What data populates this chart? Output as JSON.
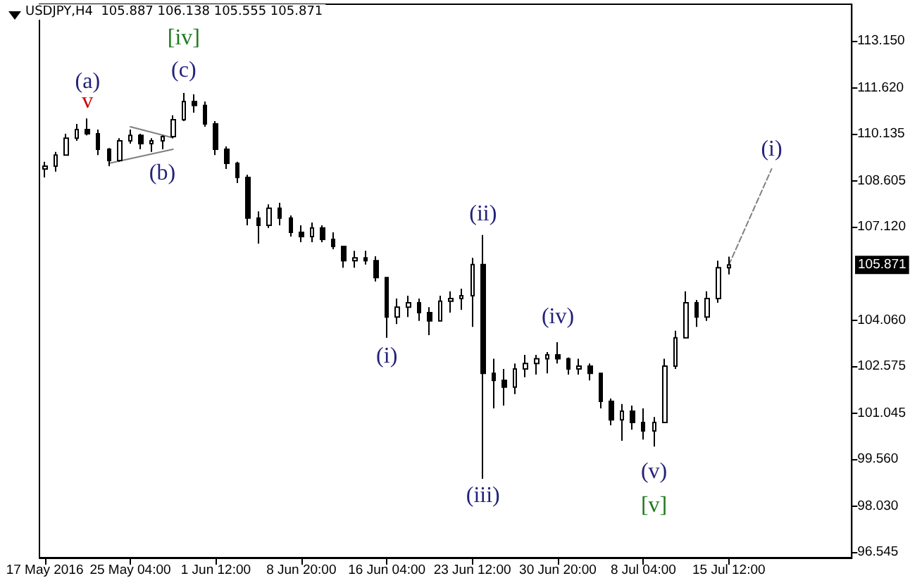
{
  "chart_data": {
    "type": "candlestick",
    "title": "USDJPY,H4  105.887 106.138 105.555 105.871",
    "color": "#000000",
    "categories": [
      "17 May 2016",
      null,
      null,
      null,
      null,
      null,
      null,
      null,
      "25 May 04:00",
      null,
      null,
      null,
      null,
      null,
      null,
      null,
      "1 Jun 12:00",
      null,
      null,
      null,
      null,
      null,
      null,
      null,
      "8 Jun 20:00",
      null,
      null,
      null,
      null,
      null,
      null,
      null,
      "16 Jun 04:00",
      null,
      null,
      null,
      null,
      null,
      null,
      null,
      "23 Jun 12:00",
      null,
      null,
      null,
      null,
      null,
      null,
      null,
      "30 Jun 20:00",
      null,
      null,
      null,
      null,
      null,
      null,
      null,
      "8 Jul 04:00",
      null,
      null,
      null,
      null,
      null,
      null,
      null,
      "15 Jul 12:00",
      null,
      null,
      null,
      null,
      null,
      null,
      null,
      null,
      null,
      null,
      null
    ],
    "ohlc": [
      [
        108.99,
        109.22,
        108.71,
        109.08
      ],
      [
        109.08,
        109.54,
        108.9,
        109.44
      ],
      [
        109.44,
        110.13,
        109.44,
        109.99
      ],
      [
        109.99,
        110.45,
        109.9,
        110.27
      ],
      [
        110.27,
        110.63,
        110.08,
        110.13
      ],
      [
        110.13,
        110.27,
        109.44,
        109.63
      ],
      [
        109.63,
        109.67,
        109.08,
        109.26
      ],
      [
        109.26,
        109.99,
        109.22,
        109.9
      ],
      [
        109.9,
        110.27,
        109.81,
        110.08
      ],
      [
        110.08,
        110.13,
        109.63,
        109.81
      ],
      [
        109.81,
        109.99,
        109.54,
        109.9
      ],
      [
        109.9,
        110.08,
        109.63,
        110.04
      ],
      [
        110.04,
        110.73,
        109.99,
        110.59
      ],
      [
        110.59,
        111.46,
        110.54,
        111.18
      ],
      [
        111.18,
        111.41,
        110.82,
        111.05
      ],
      [
        111.05,
        111.18,
        110.36,
        110.45
      ],
      [
        110.45,
        110.54,
        109.44,
        109.63
      ],
      [
        109.63,
        109.72,
        108.99,
        109.17
      ],
      [
        109.17,
        109.22,
        108.53,
        108.71
      ],
      [
        108.71,
        108.8,
        107.16,
        107.39
      ],
      [
        107.39,
        107.61,
        106.56,
        107.16
      ],
      [
        107.16,
        107.84,
        107.07,
        107.71
      ],
      [
        107.71,
        107.89,
        107.16,
        107.39
      ],
      [
        107.39,
        107.48,
        106.79,
        106.93
      ],
      [
        106.93,
        107.16,
        106.61,
        106.79
      ],
      [
        106.79,
        107.25,
        106.61,
        107.07
      ],
      [
        107.07,
        107.16,
        106.61,
        106.7
      ],
      [
        106.7,
        106.93,
        106.38,
        106.47
      ],
      [
        106.47,
        106.47,
        105.78,
        106.01
      ],
      [
        106.01,
        106.33,
        105.78,
        106.1
      ],
      [
        106.1,
        106.33,
        105.88,
        106.01
      ],
      [
        106.01,
        106.15,
        105.33,
        105.46
      ],
      [
        105.46,
        105.46,
        103.5,
        104.18
      ],
      [
        104.18,
        104.78,
        103.95,
        104.5
      ],
      [
        104.5,
        104.87,
        104.18,
        104.64
      ],
      [
        104.64,
        104.78,
        104.05,
        104.32
      ],
      [
        104.32,
        104.5,
        103.59,
        104.05
      ],
      [
        104.05,
        104.87,
        104.05,
        104.69
      ],
      [
        104.69,
        105.01,
        104.32,
        104.78
      ],
      [
        104.78,
        105.1,
        104.41,
        104.87
      ],
      [
        104.87,
        106.1,
        103.86,
        105.88
      ],
      [
        105.88,
        106.84,
        98.92,
        102.35
      ],
      [
        102.35,
        102.82,
        101.21,
        102.12
      ],
      [
        102.12,
        102.49,
        101.3,
        101.9
      ],
      [
        101.9,
        102.67,
        101.67,
        102.49
      ],
      [
        102.49,
        102.95,
        102.22,
        102.67
      ],
      [
        102.67,
        102.95,
        102.31,
        102.82
      ],
      [
        102.82,
        103.04,
        102.35,
        102.95
      ],
      [
        102.95,
        103.36,
        102.67,
        102.82
      ],
      [
        102.82,
        102.86,
        102.31,
        102.49
      ],
      [
        102.49,
        102.82,
        102.31,
        102.58
      ],
      [
        102.58,
        102.67,
        102.12,
        102.35
      ],
      [
        102.35,
        102.35,
        101.21,
        101.44
      ],
      [
        101.44,
        101.53,
        100.66,
        100.84
      ],
      [
        100.84,
        101.35,
        100.16,
        101.12
      ],
      [
        101.12,
        101.3,
        100.52,
        100.75
      ],
      [
        100.75,
        101.21,
        100.2,
        100.48
      ],
      [
        100.48,
        100.93,
        99.97,
        100.75
      ],
      [
        100.75,
        102.82,
        100.75,
        102.58
      ],
      [
        102.58,
        103.73,
        102.49,
        103.5
      ],
      [
        103.5,
        105.01,
        103.5,
        104.64
      ],
      [
        104.64,
        104.73,
        103.86,
        104.18
      ],
      [
        104.18,
        105.01,
        104.05,
        104.78
      ],
      [
        104.78,
        106.01,
        104.64,
        105.78
      ],
      [
        105.78,
        106.14,
        105.56,
        105.87
      ],
      null,
      null,
      null,
      null,
      null,
      null,
      null,
      null,
      null,
      null,
      null
    ],
    "series": [
      {
        "type": "line",
        "color": "#808080",
        "line_style": "solid",
        "values": [
          null,
          null,
          null,
          null,
          null,
          null,
          null,
          null,
          110.36,
          null,
          null,
          null,
          110.0,
          null,
          null,
          null,
          null,
          null,
          null,
          null,
          null,
          null,
          null,
          null,
          null,
          null,
          null,
          null,
          null,
          null,
          null,
          null,
          null,
          null,
          null,
          null,
          null,
          null,
          null,
          null,
          null,
          null,
          null,
          null,
          null,
          null,
          null,
          null,
          null,
          null,
          null,
          null,
          null,
          null,
          null,
          null,
          null,
          null,
          null,
          null,
          null,
          null,
          null,
          null,
          null,
          null,
          null,
          null,
          null,
          null,
          null,
          null,
          null,
          null,
          null,
          null
        ]
      },
      {
        "type": "line",
        "color": "#808080",
        "line_style": "solid",
        "values": [
          null,
          null,
          null,
          null,
          null,
          null,
          109.17,
          null,
          null,
          null,
          null,
          null,
          109.63,
          null,
          null,
          null,
          null,
          null,
          null,
          null,
          null,
          null,
          null,
          null,
          null,
          null,
          null,
          null,
          null,
          null,
          null,
          null,
          null,
          null,
          null,
          null,
          null,
          null,
          null,
          null,
          null,
          null,
          null,
          null,
          null,
          null,
          null,
          null,
          null,
          null,
          null,
          null,
          null,
          null,
          null,
          null,
          null,
          null,
          null,
          null,
          null,
          null,
          null,
          null,
          null,
          null,
          null,
          null,
          null,
          null,
          null,
          null,
          null,
          null,
          null,
          null
        ]
      },
      {
        "type": "line",
        "color": "#808080",
        "line_style": "dashed",
        "values": [
          null,
          null,
          null,
          null,
          null,
          null,
          null,
          null,
          null,
          null,
          null,
          null,
          null,
          null,
          null,
          null,
          null,
          null,
          null,
          null,
          null,
          null,
          null,
          null,
          null,
          null,
          null,
          null,
          null,
          null,
          null,
          null,
          null,
          null,
          null,
          null,
          null,
          null,
          null,
          null,
          null,
          null,
          null,
          null,
          null,
          null,
          null,
          null,
          null,
          null,
          null,
          null,
          null,
          null,
          null,
          null,
          null,
          null,
          null,
          null,
          null,
          null,
          null,
          null,
          105.87,
          null,
          null,
          null,
          108.99,
          null,
          null,
          null,
          null,
          null,
          null,
          null
        ]
      }
    ],
    "marker": "none",
    "ylim": [
      96.36,
      114.34
    ],
    "yticks": [
      {
        "value": 96.545,
        "label": "96.545"
      },
      {
        "value": 98.03,
        "label": "98.030"
      },
      {
        "value": 99.56,
        "label": "99.560"
      },
      {
        "value": 101.045,
        "label": "101.045"
      },
      {
        "value": 102.575,
        "label": "102.575"
      },
      {
        "value": 104.06,
        "label": "104.060"
      },
      {
        "value": 107.12,
        "label": "107.120"
      },
      {
        "value": 108.605,
        "label": "108.605"
      },
      {
        "value": 110.135,
        "label": "110.135"
      },
      {
        "value": 111.62,
        "label": "111.620"
      },
      {
        "value": 113.15,
        "label": "113.150"
      }
    ],
    "annotations": [
      "(a)",
      "v",
      "[iv]",
      "(c)",
      "(b)",
      "(i)",
      "(ii)",
      "(iii)",
      "(iv)",
      "(v)",
      "[v]",
      "(i)",
      "105.871"
    ]
  }
}
